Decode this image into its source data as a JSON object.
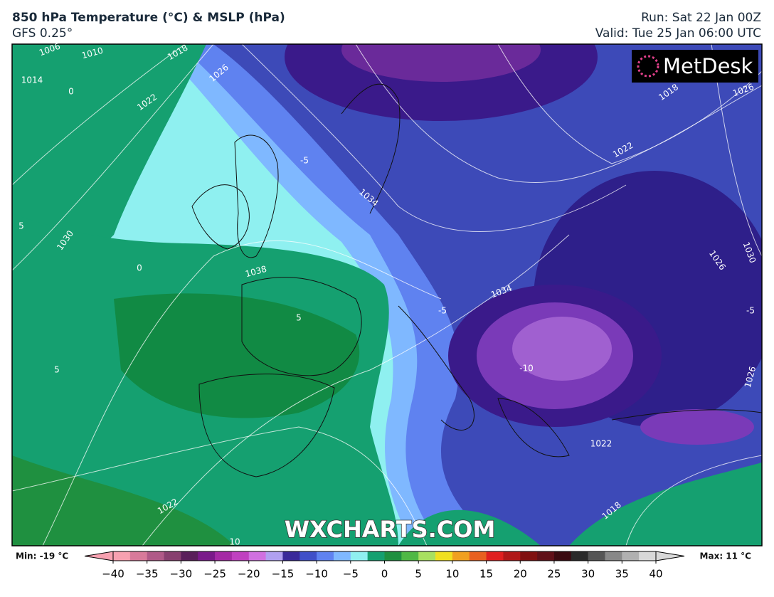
{
  "header": {
    "title": "850 hPa Temperature (°C) & MSLP (hPa)",
    "subtitle": "GFS 0.25°",
    "run": "Run: Sat 22 Jan 00Z",
    "valid": "Valid: Tue 25 Jan 06:00 UTC"
  },
  "map": {
    "logo": "MetDesk",
    "watermark": "WXCHARTS.COM",
    "labels": [
      "1006",
      "1010",
      "1014",
      "1018",
      "1026",
      "1022",
      "0",
      "1030",
      "5",
      "1038",
      "1034",
      "-5",
      "-10",
      "1022",
      "1018",
      "1026",
      "1034",
      "1026",
      "1030",
      "-5",
      "1026",
      "1022",
      "0",
      "1022",
      "1018",
      "5",
      "10",
      "-5",
      "5"
    ]
  },
  "colorbar": {
    "min_label": "Min: -19 °C",
    "max_label": "Max: 11 °C",
    "range": [
      -40,
      40
    ],
    "colors": [
      "#f7a1b0",
      "#d87a9a",
      "#b05a88",
      "#88406f",
      "#5a1f5a",
      "#7a1a8a",
      "#a52aa5",
      "#c040c0",
      "#d070e0",
      "#b0a0f0",
      "#3a2a9a",
      "#4050c8",
      "#5f82f0",
      "#7fb8ff",
      "#8ff0f0",
      "#15a070",
      "#1f9040",
      "#4fb845",
      "#a8e060",
      "#f0e020",
      "#f0a020",
      "#e86020",
      "#e02020",
      "#b01818",
      "#801010",
      "#601018",
      "#3a0a10",
      "#2a2a2a",
      "#555555",
      "#888888",
      "#b0b0b0",
      "#d8d8d8"
    ],
    "ticks": [
      {
        "value": -40,
        "label": "−40"
      },
      {
        "value": -35,
        "label": "−35"
      },
      {
        "value": -30,
        "label": "−30"
      },
      {
        "value": -25,
        "label": "−25"
      },
      {
        "value": -20,
        "label": "−20"
      },
      {
        "value": -15,
        "label": "−15"
      },
      {
        "value": -10,
        "label": "−10"
      },
      {
        "value": -5,
        "label": "−5"
      },
      0,
      5,
      10,
      15,
      20,
      25,
      30,
      35,
      40
    ]
  }
}
